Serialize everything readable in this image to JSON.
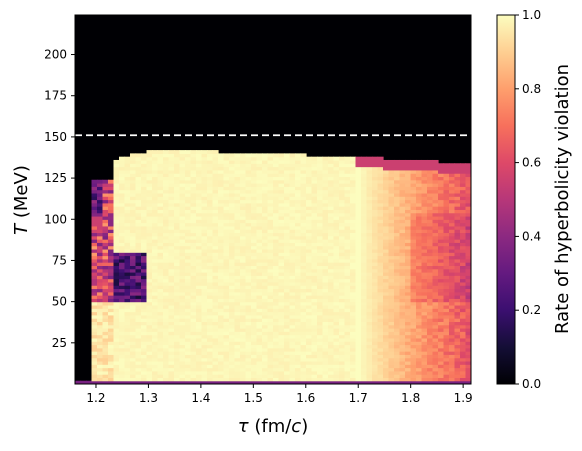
{
  "chart_data": {
    "type": "heatmap",
    "xlabel": "τ (fm/c)",
    "ylabel": "T (MeV)",
    "xlim": [
      1.16,
      1.915
    ],
    "ylim": [
      0,
      224
    ],
    "x_ticks": [
      1.2,
      1.3,
      1.4,
      1.5,
      1.6,
      1.7,
      1.8,
      1.9
    ],
    "y_ticks": [
      25,
      50,
      75,
      100,
      125,
      150,
      175,
      200
    ],
    "colorbar": {
      "label": "Rate of hyperbolicity violation",
      "colormap": "magma",
      "range": [
        0.0,
        1.0
      ],
      "ticks": [
        0.0,
        0.2,
        0.4,
        0.6,
        0.8,
        1.0
      ]
    },
    "reference_line": {
      "axis": "y",
      "value": 151,
      "style": "dashed",
      "color": "#ffffff"
    },
    "regions": [
      {
        "description": "no violation above boundary",
        "T_min": 140,
        "T_max": 224,
        "value": 0.0
      },
      {
        "description": "saturated violation core",
        "tau_min": 1.23,
        "tau_max": 1.7,
        "T_min": 2,
        "T_max": 140,
        "value": 1.0
      },
      {
        "description": "decreasing rate at late tau",
        "tau_min": 1.7,
        "tau_max": 1.915,
        "value_range": [
          0.65,
          0.95
        ]
      },
      {
        "description": "no violation at earliest tau",
        "tau_min": 1.16,
        "tau_max": 1.2,
        "value": 0.0
      }
    ],
    "boundary_T_vs_tau": {
      "tau": [
        1.23,
        1.26,
        1.3,
        1.35,
        1.4,
        1.5,
        1.6,
        1.7,
        1.8,
        1.9
      ],
      "T": [
        136,
        139,
        141,
        142,
        141.5,
        140,
        139,
        138,
        136,
        134
      ]
    },
    "cutoff_T_vs_tau": {
      "tau": [
        1.16,
        1.195,
        1.23,
        1.3,
        1.305
      ],
      "T": [
        0,
        50,
        124,
        138,
        140
      ]
    }
  }
}
